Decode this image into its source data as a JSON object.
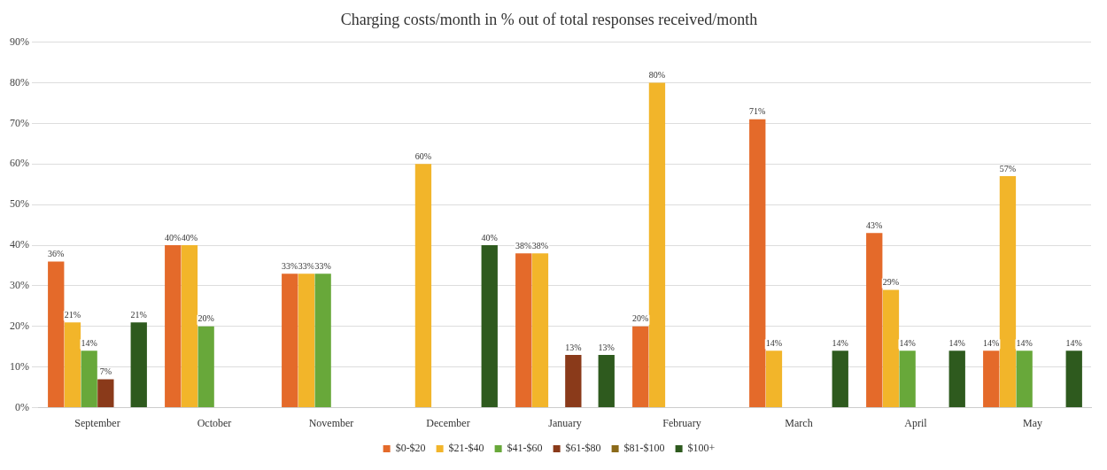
{
  "chart_data": {
    "type": "bar",
    "title": "Charging costs/month in % out of total responses received/month",
    "categories": [
      "September",
      "October",
      "November",
      "December",
      "January",
      "February",
      "March",
      "April",
      "May"
    ],
    "series": [
      {
        "name": "$0-$20",
        "color": "#e46a2a",
        "values": [
          36,
          40,
          33,
          null,
          38,
          20,
          71,
          43,
          14
        ],
        "value_labels": [
          "36%",
          "40%",
          "33%",
          null,
          "38%",
          "20%",
          "71%",
          "43%",
          "14%"
        ]
      },
      {
        "name": "$21-$40",
        "color": "#f2b52a",
        "values": [
          21,
          40,
          33,
          60,
          38,
          80,
          14,
          29,
          57
        ],
        "value_labels": [
          "21%",
          "40%",
          "33%",
          "60%",
          "38%",
          "80%",
          "14%",
          "29%",
          "57%"
        ]
      },
      {
        "name": "$41-$60",
        "color": "#68a83a",
        "values": [
          14,
          20,
          33,
          null,
          null,
          null,
          null,
          14,
          14
        ],
        "value_labels": [
          "14%",
          "20%",
          "33%",
          null,
          null,
          null,
          null,
          "14%",
          "14%"
        ]
      },
      {
        "name": "$61-$80",
        "color": "#8a3a1a",
        "values": [
          7,
          null,
          null,
          null,
          13,
          null,
          null,
          null,
          null
        ],
        "value_labels": [
          "7%",
          null,
          null,
          null,
          "13%",
          null,
          null,
          null,
          null
        ]
      },
      {
        "name": "$81-$100",
        "color": "#8b6a1a",
        "values": [
          null,
          null,
          null,
          null,
          null,
          null,
          null,
          null,
          null
        ]
      },
      {
        "name": "$100+",
        "color": "#2e5a1e",
        "values": [
          21,
          null,
          null,
          40,
          13,
          null,
          14,
          14,
          14
        ],
        "value_labels": [
          "21%",
          null,
          null,
          "40%",
          "13%",
          null,
          "14%",
          "14%",
          "14%"
        ]
      }
    ],
    "ylim": [
      0,
      90
    ],
    "yticks": [
      {
        "value": 0,
        "label": "0%"
      },
      {
        "value": 10,
        "label": "10%"
      },
      {
        "value": 20,
        "label": "20%"
      },
      {
        "value": 30,
        "label": "30%"
      },
      {
        "value": 40,
        "label": "40%"
      },
      {
        "value": 50,
        "label": "50%"
      },
      {
        "value": 60,
        "label": "60%"
      },
      {
        "value": 70,
        "label": "70%"
      },
      {
        "value": 80,
        "label": "80%"
      },
      {
        "value": 90,
        "label": "90%"
      }
    ],
    "grid": "y",
    "legend": "bottom"
  }
}
